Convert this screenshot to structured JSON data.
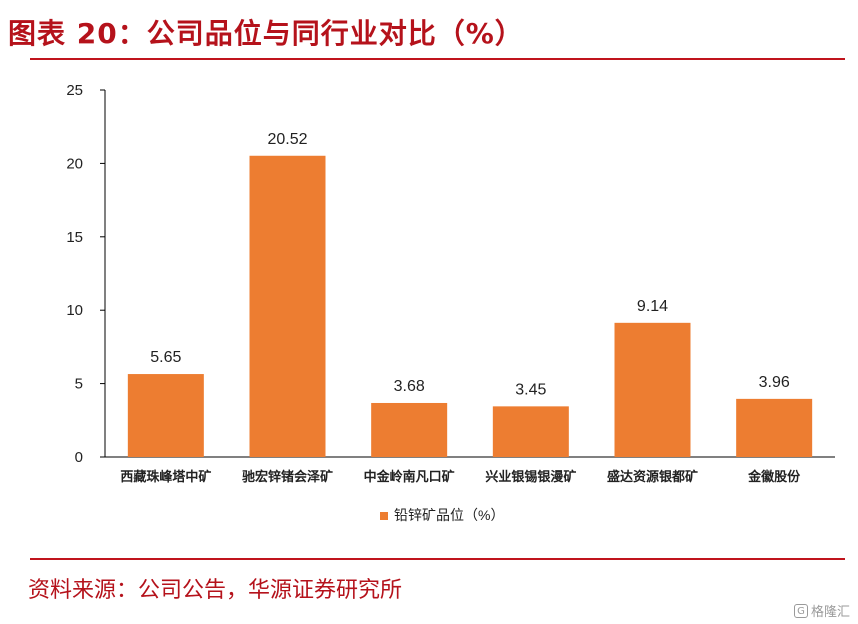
{
  "header": {
    "title": "图表 20：公司品位与同行业对比（%）"
  },
  "footer": {
    "source": "资料来源：公司公告，华源证券研究所",
    "watermark": "格隆汇"
  },
  "colors": {
    "bar": "#ed7d31",
    "accent": "#c0141d",
    "axis": "#000000",
    "text": "#222222"
  },
  "chart_data": {
    "type": "bar",
    "title": "",
    "xlabel": "",
    "ylabel": "",
    "ylim": [
      0,
      25
    ],
    "yticks": [
      0,
      5,
      10,
      15,
      20,
      25
    ],
    "grid": false,
    "legend_position": "bottom",
    "categories": [
      "西藏珠峰塔中矿",
      "驰宏锌锗会泽矿",
      "中金岭南凡口矿",
      "兴业银锡银漫矿",
      "盛达资源银都矿",
      "金徽股份"
    ],
    "series": [
      {
        "name": "铅锌矿品位（%）",
        "values": [
          5.65,
          20.52,
          3.68,
          3.45,
          9.14,
          3.96
        ],
        "labels": [
          "5.65",
          "20.52",
          "3.68",
          "3.45",
          "9.14",
          "3.96"
        ]
      }
    ]
  }
}
